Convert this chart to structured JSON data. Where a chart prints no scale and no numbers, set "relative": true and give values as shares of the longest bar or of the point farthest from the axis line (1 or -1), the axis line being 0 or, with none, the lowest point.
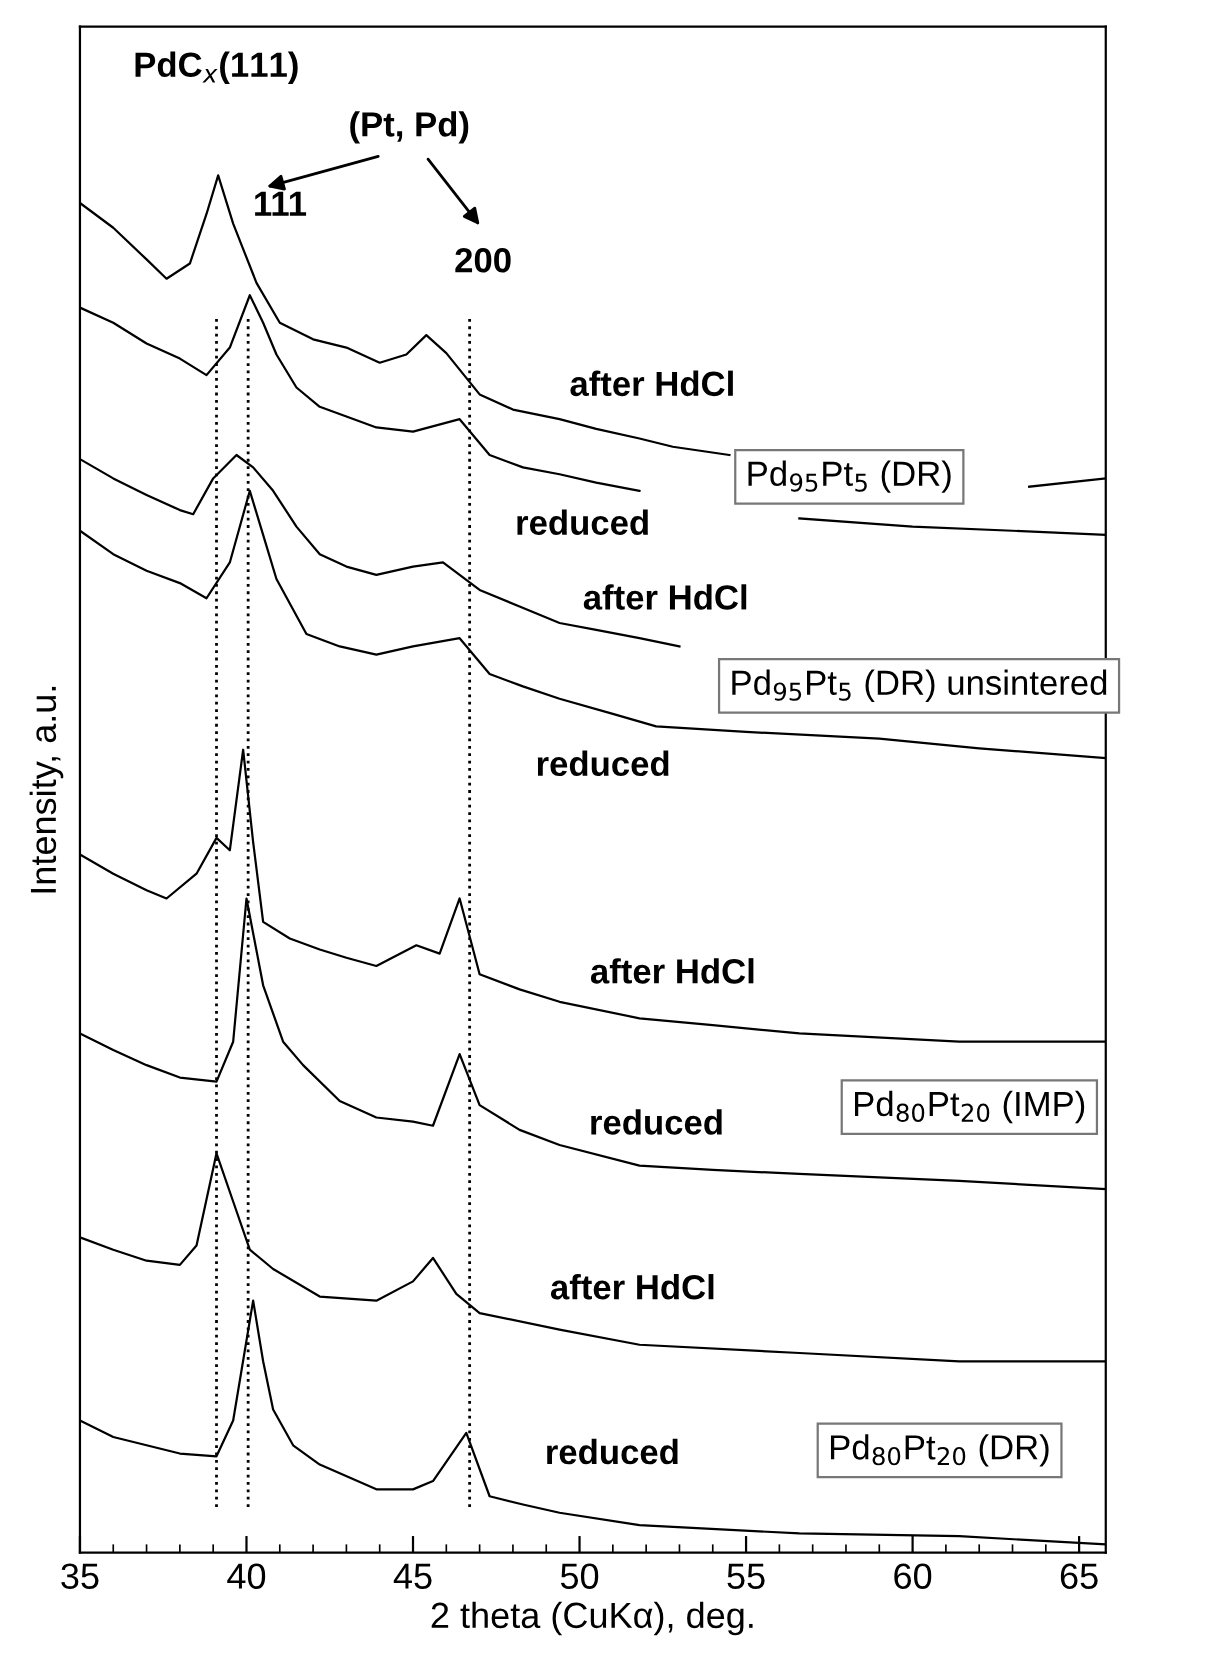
{
  "chart_data": {
    "type": "line",
    "relative": true,
    "xlabel": "2 theta (CuKα), deg.",
    "ylabel": "Intensity, a.u.",
    "xlim": [
      35,
      65.8
    ],
    "xticks": [
      35,
      40,
      45,
      50,
      55,
      60,
      65
    ],
    "tick_labels": "x",
    "legend": false,
    "marker": "none",
    "line_style": "solid",
    "grid": false,
    "series": [
      {
        "name": "after HdCl",
        "color": "#000000",
        "x": [
          35,
          36,
          37,
          37.6,
          38.3,
          38.8,
          39.15,
          39.6,
          40.3,
          41,
          42,
          43,
          44,
          44.8,
          45.4,
          46,
          47,
          48,
          49.4,
          50.5,
          51.8,
          52.8,
          54.5,
          58,
          63.5,
          65.8
        ],
        "values": [
          0.98,
          0.962,
          0.939,
          0.925,
          0.936,
          0.972,
          1.0,
          0.965,
          0.922,
          0.893,
          0.881,
          0.875,
          0.864,
          0.87,
          0.884,
          0.871,
          0.841,
          0.83,
          0.823,
          0.816,
          0.809,
          0.803,
          0.797,
          null,
          0.774,
          0.78
        ]
      },
      {
        "name": "reduced",
        "color": "#000000",
        "x": [
          35,
          36,
          37,
          38,
          38.8,
          39.5,
          40.1,
          40.5,
          40.9,
          41.5,
          42.2,
          43,
          43.9,
          45,
          46.4,
          47.3,
          48.3,
          49.4,
          50.5,
          51.8,
          53.5,
          56.6,
          60,
          63,
          65.8
        ],
        "values": [
          0.904,
          0.893,
          0.878,
          0.867,
          0.855,
          0.875,
          0.913,
          0.893,
          0.87,
          0.846,
          0.832,
          0.825,
          0.817,
          0.814,
          0.823,
          0.797,
          0.788,
          0.783,
          0.777,
          0.771,
          null,
          0.751,
          0.745,
          0.742,
          0.739
        ]
      },
      {
        "name": "after HdCl",
        "color": "#000000",
        "x": [
          35,
          36,
          37,
          38,
          38.4,
          39,
          39.7,
          40.2,
          40.8,
          41.5,
          42.2,
          43,
          43.9,
          45,
          45.9,
          47,
          48.2,
          49.4,
          50.5,
          51.8,
          53
        ],
        "values": [
          0.794,
          0.78,
          0.768,
          0.757,
          0.754,
          0.78,
          0.797,
          0.788,
          0.771,
          0.745,
          0.725,
          0.716,
          0.71,
          0.716,
          0.719,
          0.699,
          0.687,
          0.675,
          0.67,
          0.664,
          0.658
        ]
      },
      {
        "name": "reduced",
        "color": "#000000",
        "x": [
          35,
          36,
          37,
          38,
          38.8,
          39.5,
          40.1,
          40.5,
          40.9,
          41.8,
          42.8,
          43.9,
          45,
          46.4,
          47.3,
          48.3,
          49.4,
          51,
          52.3,
          55,
          59,
          62,
          65.8
        ],
        "values": [
          0.742,
          0.725,
          0.713,
          0.704,
          0.693,
          0.719,
          0.771,
          0.739,
          0.707,
          0.667,
          0.658,
          0.652,
          0.658,
          0.664,
          0.638,
          0.629,
          0.62,
          0.609,
          0.6,
          0.596,
          0.591,
          0.584,
          0.577
        ]
      },
      {
        "name": "after HdCl",
        "color": "#000000",
        "x": [
          35,
          36,
          37,
          37.6,
          38.5,
          39.1,
          39.5,
          39.9,
          40.2,
          40.5,
          41.3,
          42.2,
          43,
          43.9,
          45.1,
          45.8,
          46.4,
          47,
          48.2,
          49.4,
          51.8,
          54,
          56.6,
          61.4,
          65.8
        ],
        "values": [
          0.507,
          0.493,
          0.481,
          0.475,
          0.493,
          0.519,
          0.51,
          0.583,
          0.516,
          0.458,
          0.446,
          0.438,
          0.432,
          0.426,
          0.441,
          0.435,
          0.475,
          0.42,
          0.409,
          0.4,
          0.388,
          0.383,
          0.377,
          0.371,
          0.371
        ]
      },
      {
        "name": "reduced",
        "color": "#000000",
        "x": [
          35,
          36,
          37,
          38,
          39.1,
          39.6,
          40.0,
          40.5,
          41.1,
          41.7,
          42.8,
          43.9,
          45,
          45.6,
          46.4,
          47,
          48.2,
          49.4,
          51.8,
          54,
          56.6,
          61.4,
          65.8
        ],
        "values": [
          0.377,
          0.365,
          0.354,
          0.345,
          0.342,
          0.371,
          0.475,
          0.412,
          0.371,
          0.354,
          0.328,
          0.316,
          0.313,
          0.31,
          0.362,
          0.325,
          0.307,
          0.296,
          0.281,
          0.278,
          0.275,
          0.27,
          0.264
        ]
      },
      {
        "name": "after HdCl",
        "color": "#000000",
        "x": [
          35,
          36,
          37,
          38,
          38.5,
          39.1,
          39.6,
          40.1,
          40.8,
          42.2,
          43.9,
          45,
          45.6,
          46.3,
          47,
          49.4,
          51.8,
          56.6,
          61.4,
          65.8
        ],
        "values": [
          0.229,
          0.22,
          0.212,
          0.209,
          0.223,
          0.29,
          0.255,
          0.22,
          0.206,
          0.186,
          0.183,
          0.197,
          0.214,
          0.188,
          0.174,
          0.162,
          0.151,
          0.145,
          0.139,
          0.139
        ]
      },
      {
        "name": "reduced",
        "color": "#000000",
        "x": [
          35,
          36,
          37,
          38,
          39.1,
          39.6,
          40.2,
          40.5,
          40.8,
          41.4,
          42.2,
          43.9,
          45,
          45.6,
          46.6,
          47.3,
          48.3,
          49.4,
          51.8,
          56.6,
          61.4,
          65.8
        ],
        "values": [
          0.096,
          0.084,
          0.078,
          0.072,
          0.07,
          0.096,
          0.183,
          0.139,
          0.104,
          0.078,
          0.064,
          0.046,
          0.046,
          0.052,
          0.087,
          0.041,
          0.035,
          0.029,
          0.02,
          0.014,
          0.012,
          0.006
        ]
      }
    ],
    "ref_lines": [
      {
        "axis": "x",
        "value": 39.1,
        "line_style": "dotted",
        "color": "#000000"
      },
      {
        "axis": "x",
        "value": 40.05,
        "line_style": "dotted",
        "color": "#000000"
      },
      {
        "axis": "x",
        "value": 46.7,
        "line_style": "dotted",
        "color": "#000000"
      }
    ],
    "annotations": [
      "PdC$_{x}$(111)",
      "(Pt, Pd)",
      "111",
      "200",
      "Pd$_{95}$Pt$_{5}$ (DR)",
      "Pd$_{95}$Pt$_{5}$ (DR) unsintered",
      "Pd$_{80}$Pt$_{20}$ (IMP)",
      "Pd$_{80}$Pt$_{20}$ (DR)"
    ]
  }
}
